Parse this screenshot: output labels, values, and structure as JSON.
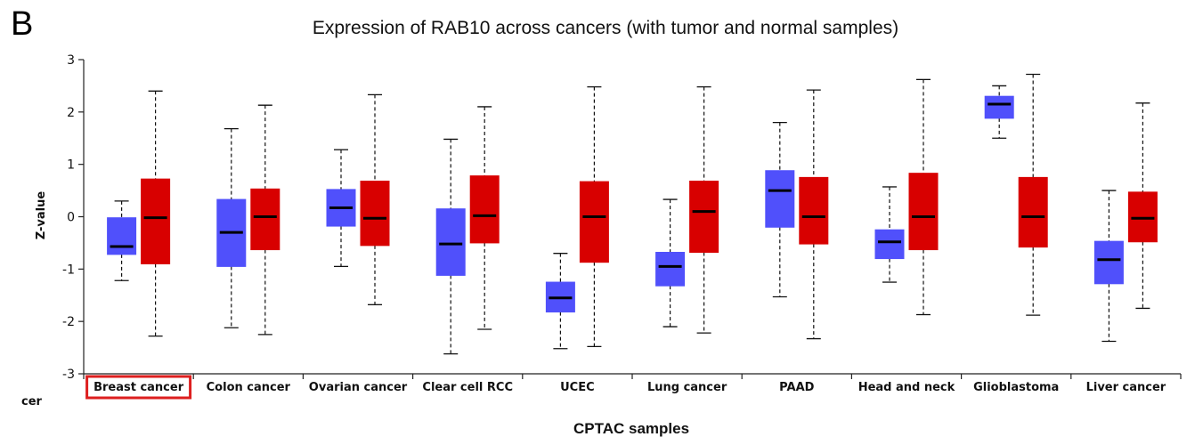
{
  "panel_label": "B",
  "stray_text": "cer",
  "chart_data": {
    "type": "box",
    "title": "Expression of RAB10 across cancers (with tumor and normal samples)",
    "xlabel": "CPTAC samples",
    "ylabel": "Z-value",
    "ylim": [
      -3,
      3
    ],
    "yticks": [
      3,
      2,
      1,
      0,
      -1,
      -2,
      -3
    ],
    "highlighted_category": "Breast cancer",
    "highlight_color": "#dd1f1f",
    "series": [
      {
        "name": "normal",
        "color": "#5050fb"
      },
      {
        "name": "tumor",
        "color": "#d80000"
      }
    ],
    "categories": [
      {
        "label": "Breast cancer",
        "normal": {
          "min": -1.22,
          "q1": -0.72,
          "median": -0.57,
          "q3": -0.02,
          "max": 0.3
        },
        "tumor": {
          "min": -2.28,
          "q1": -0.9,
          "median": -0.02,
          "q3": 0.72,
          "max": 2.4
        }
      },
      {
        "label": "Colon cancer",
        "normal": {
          "min": -2.12,
          "q1": -0.95,
          "median": -0.3,
          "q3": 0.33,
          "max": 1.68
        },
        "tumor": {
          "min": -2.25,
          "q1": -0.63,
          "median": 0.0,
          "q3": 0.53,
          "max": 2.13
        }
      },
      {
        "label": "Ovarian cancer",
        "normal": {
          "min": -0.95,
          "q1": -0.18,
          "median": 0.17,
          "q3": 0.52,
          "max": 1.28
        },
        "tumor": {
          "min": -1.68,
          "q1": -0.55,
          "median": -0.03,
          "q3": 0.68,
          "max": 2.33
        }
      },
      {
        "label": "Clear cell RCC",
        "normal": {
          "min": -2.62,
          "q1": -1.12,
          "median": -0.52,
          "q3": 0.15,
          "max": 1.48
        },
        "tumor": {
          "min": -2.15,
          "q1": -0.5,
          "median": 0.02,
          "q3": 0.78,
          "max": 2.1
        }
      },
      {
        "label": "UCEC",
        "normal": {
          "min": -2.52,
          "q1": -1.82,
          "median": -1.55,
          "q3": -1.25,
          "max": -0.7
        },
        "tumor": {
          "min": -2.48,
          "q1": -0.87,
          "median": 0.0,
          "q3": 0.67,
          "max": 2.48
        }
      },
      {
        "label": "Lung cancer",
        "normal": {
          "min": -2.1,
          "q1": -1.32,
          "median": -0.95,
          "q3": -0.68,
          "max": 0.33
        },
        "tumor": {
          "min": -2.22,
          "q1": -0.68,
          "median": 0.1,
          "q3": 0.68,
          "max": 2.48
        }
      },
      {
        "label": "PAAD",
        "normal": {
          "min": -1.53,
          "q1": -0.2,
          "median": 0.5,
          "q3": 0.88,
          "max": 1.8
        },
        "tumor": {
          "min": -2.33,
          "q1": -0.52,
          "median": 0.0,
          "q3": 0.75,
          "max": 2.42
        }
      },
      {
        "label": "Head and neck",
        "normal": {
          "min": -1.25,
          "q1": -0.8,
          "median": -0.48,
          "q3": -0.25,
          "max": 0.57
        },
        "tumor": {
          "min": -1.87,
          "q1": -0.63,
          "median": 0.0,
          "q3": 0.83,
          "max": 2.62
        }
      },
      {
        "label": "Glioblastoma",
        "normal": {
          "min": 1.5,
          "q1": 1.88,
          "median": 2.15,
          "q3": 2.3,
          "max": 2.5
        },
        "tumor": {
          "min": -1.88,
          "q1": -0.58,
          "median": 0.0,
          "q3": 0.75,
          "max": 2.72
        }
      },
      {
        "label": "Liver cancer",
        "normal": {
          "min": -2.38,
          "q1": -1.28,
          "median": -0.82,
          "q3": -0.47,
          "max": 0.5
        },
        "tumor": {
          "min": -1.75,
          "q1": -0.48,
          "median": -0.03,
          "q3": 0.47,
          "max": 2.17
        }
      }
    ]
  }
}
